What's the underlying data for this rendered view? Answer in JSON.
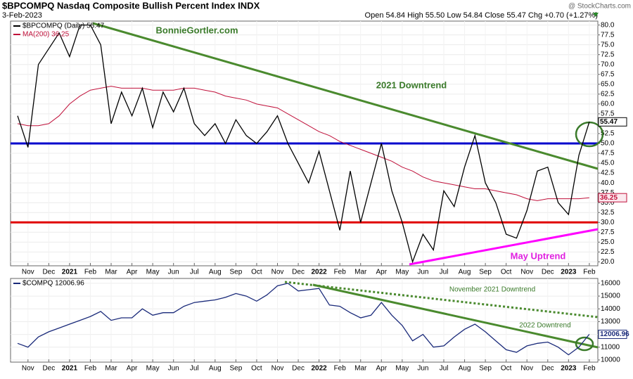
{
  "header": {
    "title": "$BPCOMPQ Nasdaq Composite Bullish Percent Index INDX",
    "date": "3-Feb-2023",
    "quote": "Open 54.84 High 55.50 Low 54.84 Close 55.47 Chg +0.70 (+1.27%)",
    "source": "@ StockCharts.com"
  },
  "chart_data": [
    {
      "type": "line",
      "annotations": [
        "BonnieGortler.com",
        "2021 Downtrend",
        "May Uptrend"
      ],
      "categories": [
        null,
        "Nov",
        null,
        "Dec",
        null,
        "2021",
        null,
        "Feb",
        null,
        "Mar",
        null,
        "Apr",
        null,
        "May",
        null,
        "Jun",
        null,
        "Jul",
        null,
        "Aug",
        null,
        "Sep",
        null,
        "Oct",
        null,
        "Nov",
        null,
        "Dec",
        null,
        "2022",
        null,
        "Feb",
        null,
        "Mar",
        null,
        "Apr",
        null,
        "May",
        null,
        "Jun",
        null,
        "Jul",
        null,
        "Aug",
        null,
        "Sep",
        null,
        "Oct",
        null,
        "Nov",
        null,
        "Dec",
        null,
        "2023",
        null,
        "Feb"
      ],
      "series": [
        {
          "name": "$BPCOMPQ (Daily) 55.47",
          "color": "#000000",
          "values": [
            57,
            49,
            70,
            74,
            78,
            72,
            80,
            80,
            75,
            55,
            63,
            57,
            64,
            54,
            63,
            58,
            64,
            55,
            52,
            55,
            50,
            56,
            52,
            50,
            53,
            57,
            50,
            45,
            40,
            48,
            38,
            28,
            43,
            30,
            40,
            50,
            38,
            30,
            20,
            27,
            23,
            38,
            34,
            44,
            52,
            40,
            35,
            27,
            26,
            33,
            43,
            44,
            35,
            32,
            47,
            55.47
          ]
        },
        {
          "name": "MA(200) 36.25",
          "color": "#c0103a",
          "values": [
            55,
            54.5,
            54.5,
            55,
            57,
            60,
            62,
            63.5,
            64,
            64.5,
            64,
            64,
            64,
            63.5,
            63.5,
            63.5,
            64,
            64,
            63.5,
            63,
            62,
            61.5,
            61,
            60,
            59.5,
            59,
            57.5,
            56,
            54.5,
            53,
            52,
            50.5,
            49.5,
            48.5,
            47.5,
            46.5,
            45.5,
            44,
            43,
            41.5,
            40.5,
            40,
            39.5,
            39,
            38.5,
            38.5,
            38,
            37.5,
            37,
            36,
            35.5,
            36,
            36,
            36,
            36,
            36.25
          ]
        }
      ],
      "hlines": [
        {
          "value": 50,
          "color": "#0000cc"
        },
        {
          "value": 30,
          "color": "#e00000"
        }
      ],
      "ylim": [
        19,
        81
      ],
      "yticks": [
        {
          "value": 20,
          "label": "20.0"
        },
        {
          "value": 22.5,
          "label": "22.5"
        },
        {
          "value": 25,
          "label": "25.0"
        },
        {
          "value": 27.5,
          "label": "27.5"
        },
        {
          "value": 30,
          "label": "30.0"
        },
        {
          "value": 32.5,
          "label": "32.5"
        },
        {
          "value": 35,
          "label": "35.0"
        },
        {
          "value": 37.5,
          "label": "37.5"
        },
        {
          "value": 40,
          "label": "40.0"
        },
        {
          "value": 42.5,
          "label": "42.5"
        },
        {
          "value": 45,
          "label": "45.0"
        },
        {
          "value": 47.5,
          "label": "47.5"
        },
        {
          "value": 50,
          "label": "50.0"
        },
        {
          "value": 52.5,
          "label": "52.5"
        },
        {
          "value": 55,
          "label": "55.0"
        },
        {
          "value": 57.5,
          "label": "57.5"
        },
        {
          "value": 60,
          "label": "60.0"
        },
        {
          "value": 62.5,
          "label": "62.5"
        },
        {
          "value": 65,
          "label": "65.0"
        },
        {
          "value": 67.5,
          "label": "67.5"
        },
        {
          "value": 70,
          "label": "70.0"
        },
        {
          "value": 72.5,
          "label": "72.5"
        },
        {
          "value": 75,
          "label": "75.0"
        },
        {
          "value": 77.5,
          "label": "77.5"
        },
        {
          "value": 80,
          "label": "80.0"
        }
      ],
      "grid": true
    },
    {
      "type": "line",
      "annotations": [
        "November 2021 Downtrend",
        "2022 Downtrend"
      ],
      "categories": [
        null,
        "Nov",
        null,
        "Dec",
        null,
        "2021",
        null,
        "Feb",
        null,
        "Mar",
        null,
        "Apr",
        null,
        "May",
        null,
        "Jun",
        null,
        "Jul",
        null,
        "Aug",
        null,
        "Sep",
        null,
        "Oct",
        null,
        "Nov",
        null,
        "Dec",
        null,
        "2022",
        null,
        "Feb",
        null,
        "Mar",
        null,
        "Apr",
        null,
        "May",
        null,
        "Jun",
        null,
        "Jul",
        null,
        "Aug",
        null,
        "Sep",
        null,
        "Oct",
        null,
        "Nov",
        null,
        "Dec",
        null,
        "2023",
        null,
        "Feb"
      ],
      "series": [
        {
          "name": "$COMPQ 12006.96",
          "color": "#1a2a7a",
          "values": [
            11300,
            11000,
            11800,
            12200,
            12500,
            12800,
            13100,
            13400,
            13800,
            13100,
            13300,
            13300,
            14000,
            13500,
            13700,
            13700,
            14200,
            14500,
            14600,
            14700,
            14900,
            15200,
            15000,
            14600,
            15100,
            15800,
            16000,
            15400,
            15500,
            15600,
            14300,
            14200,
            13700,
            13300,
            13500,
            14500,
            13500,
            12700,
            11500,
            12000,
            11000,
            11100,
            11800,
            12400,
            12800,
            12200,
            11500,
            10800,
            10600,
            11100,
            11300,
            11400,
            11000,
            10400,
            11000,
            12006.96
          ]
        }
      ],
      "ylim": [
        9830,
        16380
      ],
      "yticks": [
        10000,
        11000,
        12000,
        13000,
        14000,
        15000,
        16000
      ],
      "grid": true
    }
  ]
}
